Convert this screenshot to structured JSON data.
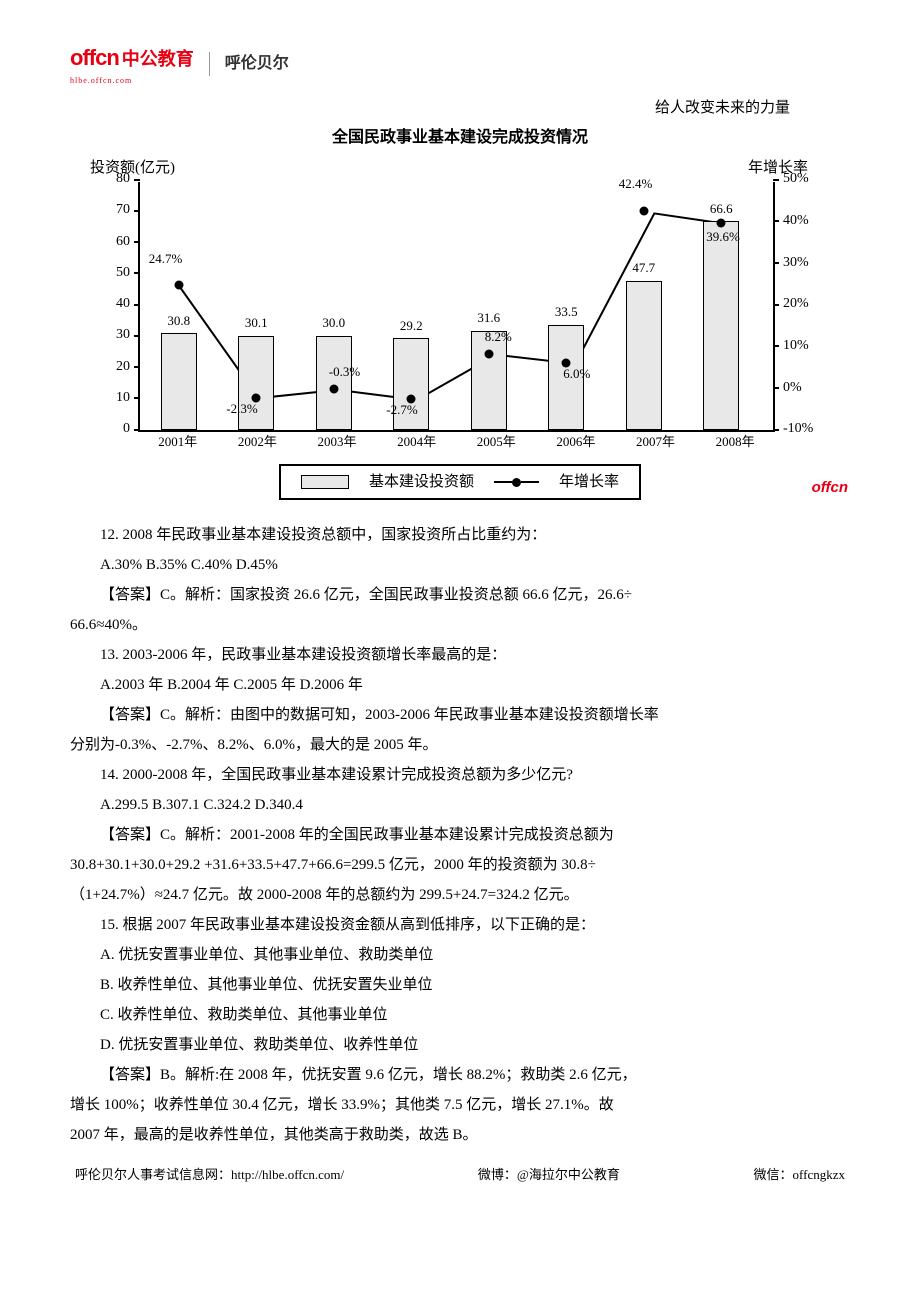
{
  "header": {
    "logo_latin": "offcn",
    "logo_chinese": "中公教育",
    "logo_sub": "给人改变未来的力量",
    "region": "呼伦贝尔",
    "site_sub": "hlbe.offcn.com"
  },
  "tagline": "给人改变未来的力量",
  "chart": {
    "title": "全国民政事业基本建设完成投资情况",
    "y_left_label": "投资额(亿元)",
    "y_right_label": "年增长率",
    "y_left_max": 80,
    "y_left_ticks": [
      0,
      10,
      20,
      30,
      40,
      50,
      60,
      70,
      80
    ],
    "y_right_min": -10,
    "y_right_max": 50,
    "y_right_ticks": [
      "-10%",
      "0%",
      "10%",
      "20%",
      "30%",
      "40%",
      "50%"
    ],
    "years": [
      "2001年",
      "2002年",
      "2003年",
      "2004年",
      "2005年",
      "2006年",
      "2007年",
      "2008年"
    ],
    "bar_values": [
      30.8,
      30.1,
      30.0,
      29.2,
      31.6,
      33.5,
      47.7,
      66.6
    ],
    "growth_rates": [
      24.7,
      -2.3,
      -0.3,
      -2.7,
      8.2,
      6.0,
      42.4,
      39.6
    ],
    "growth_labels": [
      "24.7%",
      "-2.3%",
      "-0.3%",
      "-2.7%",
      "8.2%",
      "6.0%",
      "42.4%",
      "39.6%"
    ],
    "legend_bar": "基本建设投资额",
    "legend_line": "年增长率",
    "bar_color": "#e8e8e8",
    "border_color": "#000000",
    "watermark": "offcn"
  },
  "questions": {
    "q12_text": "12. 2008 年民政事业基本建设投资总额中，国家投资所占比重约为：",
    "q12_options": "A.30% B.35% C.40% D.45%",
    "q12_answer": "【答案】C。解析：国家投资 26.6 亿元，全国民政事业投资总额 66.6 亿元，26.6÷",
    "q12_answer2": "66.6≈40%。",
    "q13_text": "13. 2003-2006 年，民政事业基本建设投资额增长率最高的是：",
    "q13_options": "A.2003 年 B.2004 年 C.2005 年 D.2006 年",
    "q13_answer": "【答案】C。解析：由图中的数据可知，2003-2006 年民政事业基本建设投资额增长率",
    "q13_answer2": "分别为-0.3%、-2.7%、8.2%、6.0%，最大的是 2005 年。",
    "q14_text": "14. 2000-2008 年，全国民政事业基本建设累计完成投资总额为多少亿元?",
    "q14_options": "A.299.5 B.307.1 C.324.2 D.340.4",
    "q14_answer": "【答案】C。解析：2001-2008 年的全国民政事业基本建设累计完成投资总额为",
    "q14_answer2": "30.8+30.1+30.0+29.2 +31.6+33.5+47.7+66.6=299.5 亿元，2000 年的投资额为 30.8÷",
    "q14_answer3": "（1+24.7%）≈24.7 亿元。故 2000-2008 年的总额约为 299.5+24.7=324.2 亿元。",
    "q15_text": "15. 根据 2007 年民政事业基本建设投资金额从高到低排序，以下正确的是：",
    "q15_a": "A. 优抚安置事业单位、其他事业单位、救助类单位",
    "q15_b": "B. 收养性单位、其他事业单位、优抚安置失业单位",
    "q15_c": "C. 收养性单位、救助类单位、其他事业单位",
    "q15_d": "D. 优抚安置事业单位、救助类单位、收养性单位",
    "q15_answer": "【答案】B。解析:在 2008 年，优抚安置 9.6 亿元，增长 88.2%；救助类 2.6 亿元，",
    "q15_answer2": "增长 100%；收养性单位 30.4 亿元，增长 33.9%；其他类 7.5 亿元，增长 27.1%。故",
    "q15_answer3": "2007 年，最高的是收养性单位，其他类高于救助类，故选 B。"
  },
  "footer": {
    "site": "呼伦贝尔人事考试信息网：http://hlbe.offcn.com/",
    "weibo": "微博：@海拉尔中公教育",
    "wechat": "微信：offcngkzx"
  }
}
